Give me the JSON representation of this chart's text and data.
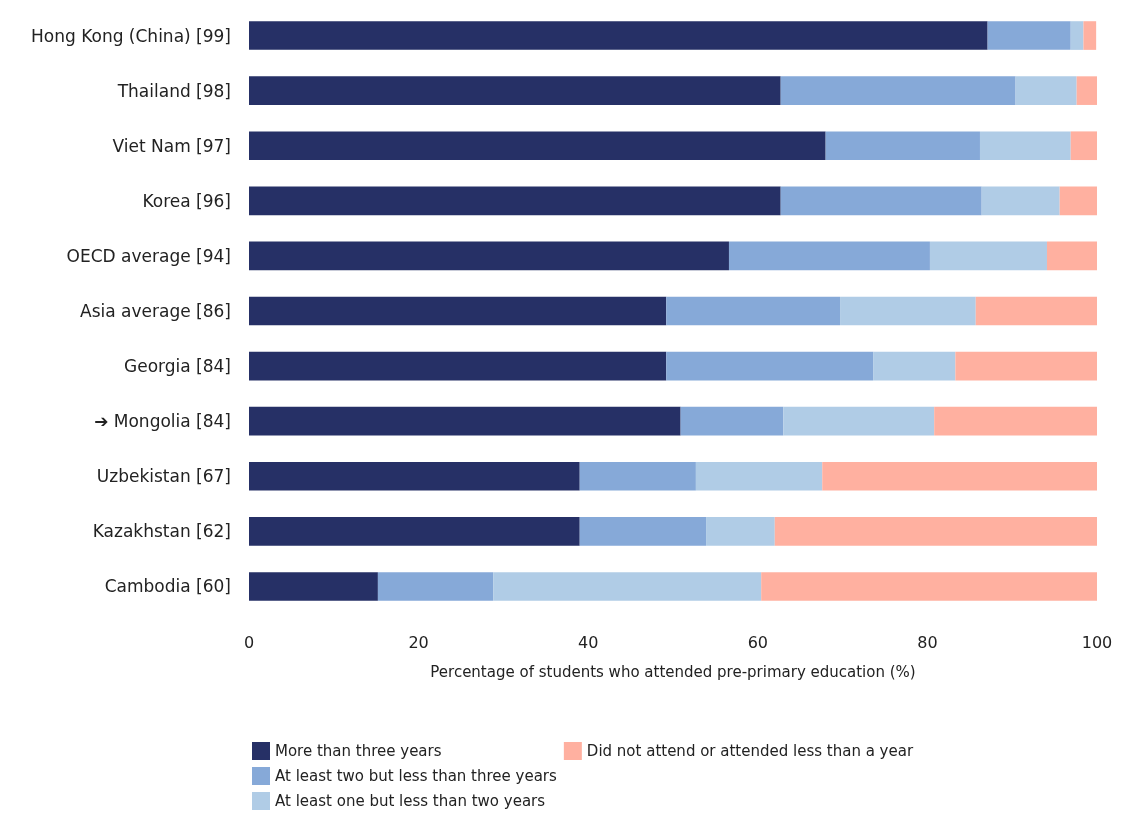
{
  "chart_data": {
    "type": "bar",
    "orientation": "horizontal",
    "stacked": true,
    "categories": [
      "Hong Kong (China) [99]",
      "Thailand [98]",
      "Viet Nam [97]",
      "Korea [96]",
      "OECD average [94]",
      "Asia average [86]",
      "Georgia [84]",
      "➔ Mongolia [84]",
      "Uzbekistan [67]",
      "Kazakhstan [62]",
      "Cambodia [60]"
    ],
    "series": [
      {
        "name": "More than three years",
        "color": "#263066",
        "values": [
          87.1,
          62.7,
          68.0,
          62.7,
          56.6,
          49.2,
          49.2,
          50.9,
          39.0,
          39.0,
          15.2
        ]
      },
      {
        "name": "At least two but less than three years",
        "color": "#86a9d8",
        "values": [
          9.8,
          27.7,
          18.2,
          23.7,
          23.7,
          20.5,
          24.4,
          12.1,
          13.7,
          14.9,
          13.6
        ]
      },
      {
        "name": "At least one but less than two years",
        "color": "#b0cce6",
        "values": [
          1.5,
          7.2,
          10.7,
          9.2,
          13.8,
          16.0,
          9.7,
          17.8,
          14.9,
          8.1,
          31.6
        ]
      },
      {
        "name": "Did not attend or attended less than a year",
        "color": "#ffb0a0",
        "values": [
          1.5,
          2.4,
          3.1,
          4.4,
          5.9,
          14.3,
          16.7,
          19.2,
          32.4,
          38.0,
          39.6
        ]
      }
    ],
    "xlabel": "Percentage of students who attended pre-primary education (%)",
    "xlim": [
      0,
      100
    ],
    "xticks": [
      0,
      20,
      40,
      60,
      80,
      100
    ],
    "grid": false,
    "legend": "bottom left"
  }
}
